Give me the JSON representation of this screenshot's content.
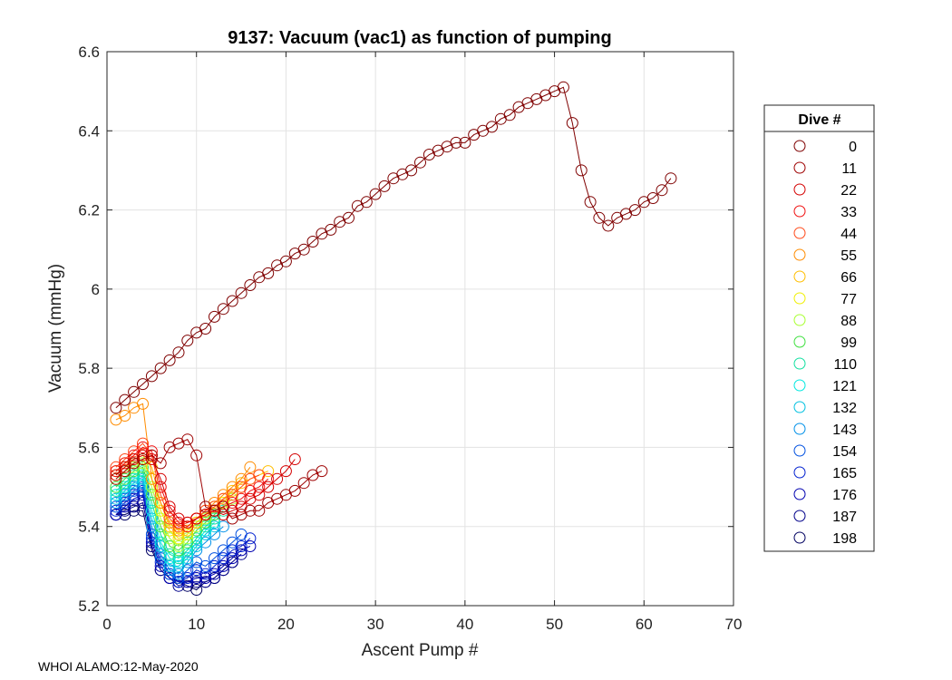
{
  "chart_data": {
    "type": "scatter",
    "title": "9137: Vacuum (vac1) as function of pumping",
    "xlabel": "Ascent Pump #",
    "ylabel": "Vacuum (mmHg)",
    "xlim": [
      0,
      70
    ],
    "ylim": [
      5.2,
      6.6
    ],
    "xticks": [
      0,
      10,
      20,
      30,
      40,
      50,
      60,
      70
    ],
    "yticks": [
      5.2,
      5.4,
      5.6,
      5.8,
      6,
      6.2,
      6.4,
      6.6
    ],
    "ytick_labels": [
      "5.2",
      "5.4",
      "5.6",
      "5.8",
      "6",
      "6.2",
      "6.4",
      "6.6"
    ],
    "grid": true,
    "legend": {
      "title": "Dive #",
      "position": "right"
    },
    "series": [
      {
        "name": "0",
        "color": "#7f0000",
        "x": [
          1,
          2,
          3,
          4,
          5,
          6,
          7,
          8,
          9,
          10,
          11,
          12,
          13,
          14,
          15,
          16,
          17,
          18,
          19,
          20,
          21,
          22,
          23,
          24,
          25,
          26,
          27,
          28,
          29,
          30,
          31,
          32,
          33,
          34,
          35,
          36,
          37,
          38,
          39,
          40,
          41,
          42,
          43,
          44,
          45,
          46,
          47,
          48,
          49,
          50,
          51,
          52,
          53,
          54,
          55,
          56,
          57,
          58,
          59,
          60,
          61,
          62,
          63
        ],
        "y": [
          5.7,
          5.72,
          5.74,
          5.76,
          5.78,
          5.8,
          5.82,
          5.84,
          5.87,
          5.89,
          5.9,
          5.93,
          5.95,
          5.97,
          5.99,
          6.01,
          6.03,
          6.04,
          6.06,
          6.07,
          6.09,
          6.1,
          6.12,
          6.14,
          6.15,
          6.17,
          6.18,
          6.21,
          6.22,
          6.24,
          6.26,
          6.28,
          6.29,
          6.3,
          6.32,
          6.34,
          6.35,
          6.36,
          6.37,
          6.37,
          6.39,
          6.4,
          6.41,
          6.43,
          6.44,
          6.46,
          6.47,
          6.48,
          6.49,
          6.5,
          6.51,
          6.42,
          6.3,
          6.22,
          6.18,
          6.16,
          6.18,
          6.19,
          6.2,
          6.22,
          6.23,
          6.25,
          6.28
        ]
      },
      {
        "name": "11",
        "color": "#9e0000",
        "x": [
          1,
          2,
          3,
          4,
          5,
          6,
          7,
          8,
          9,
          10,
          11,
          12,
          13,
          14,
          15,
          16,
          17,
          18,
          19,
          20,
          21,
          22,
          23,
          24
        ],
        "y": [
          5.52,
          5.54,
          5.56,
          5.57,
          5.58,
          5.56,
          5.6,
          5.61,
          5.62,
          5.58,
          5.45,
          5.44,
          5.45,
          5.42,
          5.43,
          5.44,
          5.44,
          5.46,
          5.47,
          5.48,
          5.49,
          5.51,
          5.53,
          5.54
        ]
      },
      {
        "name": "22",
        "color": "#d40000",
        "x": [
          1,
          2,
          3,
          4,
          5,
          6,
          7,
          8,
          9,
          10,
          11,
          12,
          13,
          14,
          15,
          16,
          17,
          18,
          19,
          20,
          21
        ],
        "y": [
          5.53,
          5.55,
          5.57,
          5.58,
          5.57,
          5.52,
          5.45,
          5.42,
          5.41,
          5.42,
          5.43,
          5.44,
          5.43,
          5.44,
          5.45,
          5.47,
          5.48,
          5.5,
          5.52,
          5.54,
          5.57
        ]
      },
      {
        "name": "33",
        "color": "#f01010",
        "x": [
          1,
          2,
          3,
          4,
          5,
          6,
          7,
          8,
          9,
          10,
          11,
          12,
          13,
          14,
          15,
          16,
          17,
          18
        ],
        "y": [
          5.54,
          5.56,
          5.58,
          5.6,
          5.59,
          5.5,
          5.44,
          5.41,
          5.4,
          5.42,
          5.43,
          5.44,
          5.45,
          5.46,
          5.47,
          5.49,
          5.5,
          5.52
        ]
      },
      {
        "name": "44",
        "color": "#ff4a1a",
        "x": [
          1,
          2,
          3,
          4,
          5,
          6,
          7,
          8,
          9,
          10,
          11,
          12,
          13,
          14,
          15,
          16,
          17
        ],
        "y": [
          5.55,
          5.57,
          5.59,
          5.61,
          5.58,
          5.48,
          5.42,
          5.4,
          5.41,
          5.42,
          5.44,
          5.45,
          5.47,
          5.48,
          5.5,
          5.52,
          5.53
        ]
      },
      {
        "name": "55",
        "color": "#ff8c00",
        "x": [
          1,
          2,
          3,
          4,
          5,
          6,
          7,
          8,
          9,
          10,
          11,
          12,
          13,
          14,
          15,
          16
        ],
        "y": [
          5.67,
          5.68,
          5.7,
          5.71,
          5.52,
          5.46,
          5.41,
          5.39,
          5.4,
          5.42,
          5.44,
          5.46,
          5.48,
          5.5,
          5.52,
          5.55
        ]
      },
      {
        "name": "66",
        "color": "#ffbe00",
        "x": [
          1,
          2,
          3,
          4,
          5,
          6,
          7,
          8,
          9,
          10,
          11,
          12,
          13,
          14,
          15,
          16,
          17,
          18
        ],
        "y": [
          5.54,
          5.56,
          5.57,
          5.58,
          5.55,
          5.46,
          5.4,
          5.38,
          5.39,
          5.41,
          5.43,
          5.45,
          5.47,
          5.49,
          5.51,
          5.52,
          5.53,
          5.54
        ]
      },
      {
        "name": "77",
        "color": "#f0f000",
        "x": [
          1,
          2,
          3,
          4,
          5,
          6,
          7,
          8,
          9,
          10,
          11,
          12,
          13,
          14,
          15
        ],
        "y": [
          5.53,
          5.55,
          5.56,
          5.57,
          5.52,
          5.44,
          5.39,
          5.37,
          5.38,
          5.41,
          5.43,
          5.45,
          5.46,
          5.48,
          5.5
        ]
      },
      {
        "name": "88",
        "color": "#a8ff30",
        "x": [
          1,
          2,
          3,
          4,
          5,
          6,
          7,
          8,
          9,
          10,
          11,
          12,
          13,
          14
        ],
        "y": [
          5.52,
          5.54,
          5.55,
          5.56,
          5.5,
          5.42,
          5.37,
          5.35,
          5.37,
          5.4,
          5.42,
          5.44,
          5.45,
          5.47
        ]
      },
      {
        "name": "99",
        "color": "#40e040",
        "x": [
          1,
          2,
          3,
          4,
          5,
          6,
          7,
          8,
          9,
          10,
          11,
          12,
          13
        ],
        "y": [
          5.5,
          5.52,
          5.54,
          5.55,
          5.48,
          5.4,
          5.35,
          5.34,
          5.36,
          5.39,
          5.41,
          5.43,
          5.45
        ]
      },
      {
        "name": "110",
        "color": "#10e0a0",
        "x": [
          1,
          2,
          3,
          4,
          5,
          6,
          7,
          8,
          9,
          10,
          11,
          12,
          13
        ],
        "y": [
          5.49,
          5.51,
          5.53,
          5.54,
          5.46,
          5.38,
          5.33,
          5.32,
          5.34,
          5.37,
          5.4,
          5.42,
          5.44
        ]
      },
      {
        "name": "121",
        "color": "#00e8e0",
        "x": [
          1,
          2,
          3,
          4,
          5,
          6,
          7,
          8,
          9,
          10,
          11,
          12
        ],
        "y": [
          5.48,
          5.5,
          5.52,
          5.53,
          5.44,
          5.36,
          5.32,
          5.31,
          5.33,
          5.36,
          5.39,
          5.41
        ]
      },
      {
        "name": "132",
        "color": "#00c0e0",
        "x": [
          1,
          2,
          3,
          4,
          5,
          6,
          7,
          8,
          9,
          10,
          11,
          12
        ],
        "y": [
          5.47,
          5.49,
          5.51,
          5.52,
          5.42,
          5.35,
          5.3,
          5.3,
          5.32,
          5.35,
          5.38,
          5.4
        ]
      },
      {
        "name": "143",
        "color": "#0090e8",
        "x": [
          1,
          2,
          3,
          4,
          5,
          6,
          7,
          8,
          9,
          10,
          11,
          12,
          13
        ],
        "y": [
          5.46,
          5.48,
          5.5,
          5.51,
          5.4,
          5.33,
          5.29,
          5.28,
          5.31,
          5.34,
          5.36,
          5.38,
          5.4
        ]
      },
      {
        "name": "154",
        "color": "#0050e0",
        "x": [
          1,
          2,
          3,
          4,
          5,
          6,
          7,
          8,
          9,
          10,
          11,
          12,
          13,
          14,
          15
        ],
        "y": [
          5.45,
          5.47,
          5.49,
          5.5,
          5.38,
          5.32,
          5.28,
          5.27,
          5.29,
          5.31,
          5.3,
          5.32,
          5.34,
          5.36,
          5.38
        ]
      },
      {
        "name": "165",
        "color": "#0020d0",
        "x": [
          1,
          2,
          3,
          4,
          5,
          6,
          7,
          8,
          9,
          10,
          11,
          12,
          13,
          14,
          15,
          16
        ],
        "y": [
          5.44,
          5.46,
          5.48,
          5.49,
          5.37,
          5.31,
          5.28,
          5.26,
          5.27,
          5.29,
          5.28,
          5.3,
          5.32,
          5.34,
          5.35,
          5.37
        ]
      },
      {
        "name": "176",
        "color": "#0000b0",
        "x": [
          1,
          2,
          3,
          4,
          5,
          6,
          7,
          8,
          9,
          10,
          11,
          12,
          13,
          14,
          15,
          16
        ],
        "y": [
          5.43,
          5.45,
          5.47,
          5.48,
          5.36,
          5.3,
          5.27,
          5.26,
          5.26,
          5.27,
          5.27,
          5.28,
          5.3,
          5.32,
          5.34,
          5.35
        ]
      },
      {
        "name": "187",
        "color": "#00008a",
        "x": [
          1,
          2,
          3,
          4,
          5,
          6,
          7,
          8,
          9,
          10,
          11,
          12,
          13,
          14,
          15
        ],
        "y": [
          5.43,
          5.44,
          5.45,
          5.46,
          5.35,
          5.29,
          5.27,
          5.25,
          5.26,
          5.26,
          5.26,
          5.27,
          5.29,
          5.31,
          5.33
        ]
      },
      {
        "name": "198",
        "color": "#000060",
        "x": [
          1,
          2,
          3,
          4,
          5,
          6,
          7,
          8,
          9,
          10,
          11,
          12,
          13,
          14
        ],
        "y": [
          5.43,
          5.43,
          5.44,
          5.44,
          5.34,
          5.29,
          5.27,
          5.26,
          5.25,
          5.24,
          5.26,
          5.27,
          5.29,
          5.31
        ]
      }
    ]
  },
  "footer": "WHOI ALAMO:12-May-2020"
}
